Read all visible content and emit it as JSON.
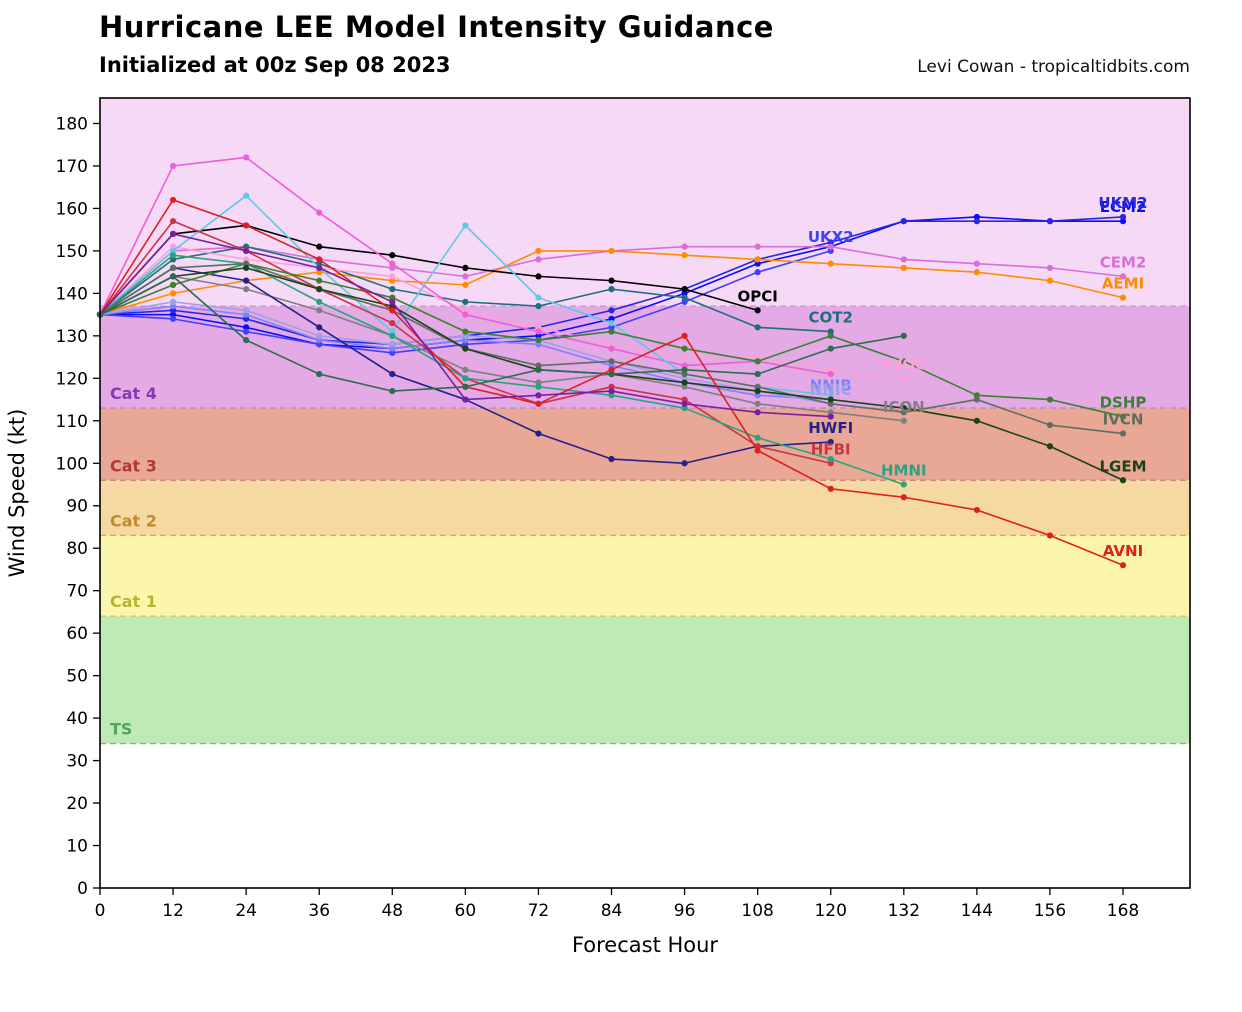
{
  "header": {
    "title": "Hurricane LEE Model Intensity Guidance",
    "subtitle": "Initialized at 00z Sep 08 2023",
    "credit": "Levi Cowan - tropicaltidbits.com"
  },
  "chart_data": {
    "type": "line",
    "title": "Hurricane LEE Model Intensity Guidance",
    "subtitle": "Initialized at 00z Sep 08 2023",
    "xlabel": "Forecast Hour",
    "ylabel": "Wind Speed (kt)",
    "xlim": [
      0,
      179
    ],
    "ylim": [
      0,
      186
    ],
    "grid": false,
    "legend_position": "line-end-labels",
    "xticks": [
      0,
      12,
      24,
      36,
      48,
      60,
      72,
      84,
      96,
      108,
      120,
      132,
      144,
      156,
      168
    ],
    "yticks": [
      0,
      10,
      20,
      30,
      40,
      50,
      60,
      70,
      80,
      90,
      100,
      110,
      120,
      130,
      140,
      150,
      160,
      170,
      180
    ],
    "x": [
      0,
      12,
      24,
      36,
      48,
      60,
      72,
      84,
      96,
      108,
      120,
      132,
      144,
      156,
      168
    ],
    "bands": [
      {
        "id": "ts",
        "label": "TS",
        "from": 34,
        "to": 64,
        "fill": "#bfe9b5",
        "label_color": "#53a653",
        "edge": "#78b878"
      },
      {
        "id": "cat-1",
        "label": "Cat 1",
        "from": 64,
        "to": 83,
        "fill": "#fcf6ac",
        "label_color": "#b5b533",
        "edge": "#c9c96a"
      },
      {
        "id": "cat-2",
        "label": "Cat 2",
        "from": 83,
        "to": 96,
        "fill": "#f6d9a2",
        "label_color": "#c08a2e",
        "edge": "#cfa95e"
      },
      {
        "id": "cat-3",
        "label": "Cat 3",
        "from": 96,
        "to": 113,
        "fill": "#e9a795",
        "label_color": "#b03a30",
        "edge": "#c98776"
      },
      {
        "id": "cat-4",
        "label": "Cat 4",
        "from": 113,
        "to": 137,
        "fill": "#e3aae6",
        "label_color": "#8a3ab0",
        "edge": "#b887c9"
      },
      {
        "id": "cat-5",
        "label": "",
        "from": 137,
        "to": 186,
        "fill": "#f6d9f6",
        "label_color": "#c875c8",
        "edge": "#cf9ad0"
      }
    ],
    "series": [
      {
        "id": "ecm2",
        "name": "ECM2",
        "color": "#0a0aff",
        "values": [
          135,
          135,
          132,
          128,
          127,
          129,
          130,
          134,
          140,
          147,
          151,
          157,
          158,
          157,
          157
        ]
      },
      {
        "id": "ukm2",
        "name": "UKM2",
        "color": "#2727e0",
        "values": [
          135,
          136,
          134,
          129,
          128,
          130,
          132,
          136,
          141,
          148,
          152,
          157,
          157,
          157,
          158
        ]
      },
      {
        "id": "ukx2",
        "name": "UKX2",
        "color": "#4040ff",
        "values": [
          135,
          134,
          131,
          128,
          126,
          128,
          129,
          132,
          138,
          145,
          150
        ]
      },
      {
        "id": "cem2",
        "name": "CEM2",
        "color": "#d86fd8",
        "values": [
          135,
          150,
          151,
          148,
          146,
          144,
          148,
          150,
          151,
          151,
          151,
          148,
          147,
          146,
          144
        ]
      },
      {
        "id": "aemi",
        "name": "AEMI",
        "color": "#ff8c00",
        "values": [
          135,
          140,
          143,
          145,
          143,
          142,
          150,
          150,
          149,
          148,
          147,
          146,
          145,
          143,
          139
        ]
      },
      {
        "id": "opci",
        "name": "OPCI",
        "color": "#000000",
        "values": [
          135,
          154,
          156,
          151,
          149,
          146,
          144,
          143,
          141,
          136
        ]
      },
      {
        "id": "cot2",
        "name": "COT2",
        "color": "#1f6f7a",
        "values": [
          135,
          148,
          151,
          147,
          141,
          138,
          137,
          141,
          139,
          132,
          131
        ]
      },
      {
        "id": "ryoc",
        "name": "RYOC",
        "color": "#ff9fd7",
        "values": [
          135,
          151,
          148,
          146,
          144,
          136,
          132,
          128,
          125,
          125,
          122,
          120
        ]
      },
      {
        "id": "model-magenta",
        "name": "",
        "color": "#ee5fd5",
        "values": [
          135,
          170,
          172,
          159,
          147,
          135,
          131,
          127,
          123,
          124,
          121
        ]
      },
      {
        "id": "model-cyan",
        "name": "",
        "color": "#5ec8e6",
        "values": [
          135,
          150,
          163,
          146,
          131,
          156,
          139,
          133,
          121,
          118,
          116
        ]
      },
      {
        "id": "nnib",
        "name": "NNIB",
        "color": "#8080ff",
        "values": [
          135,
          137,
          135,
          129,
          127,
          129,
          128,
          123,
          119,
          116,
          115
        ]
      },
      {
        "id": "nnic",
        "name": "NNIC",
        "color": "#9f9fe8",
        "values": [
          135,
          138,
          136,
          130,
          128,
          130,
          129,
          124,
          120,
          117,
          114
        ]
      },
      {
        "id": "icon",
        "name": "ICON",
        "color": "#808080",
        "values": [
          135,
          144,
          141,
          136,
          130,
          122,
          119,
          121,
          118,
          114,
          112,
          110
        ]
      },
      {
        "id": "hwfi",
        "name": "HWFI",
        "color": "#22228a",
        "values": [
          135,
          146,
          143,
          132,
          121,
          115,
          107,
          101,
          100,
          104,
          105
        ]
      },
      {
        "id": "hfbi",
        "name": "HFBI",
        "color": "#cc3344",
        "values": [
          135,
          157,
          150,
          141,
          133,
          120,
          114,
          118,
          115,
          104,
          100
        ]
      },
      {
        "id": "hmni",
        "name": "HMNI",
        "color": "#2aa37e",
        "values": [
          135,
          149,
          147,
          138,
          130,
          120,
          118,
          116,
          113,
          106,
          101,
          95
        ]
      },
      {
        "id": "dshp",
        "name": "DSHP",
        "color": "#3c8031",
        "values": [
          135,
          142,
          147,
          143,
          139,
          131,
          129,
          131,
          127,
          124,
          130,
          124,
          116,
          115,
          111
        ]
      },
      {
        "id": "ivcn",
        "name": "IVCN",
        "color": "#5f6f5f",
        "values": [
          135,
          146,
          147,
          141,
          136,
          127,
          123,
          124,
          121,
          118,
          114,
          112,
          115,
          109,
          107
        ]
      },
      {
        "id": "lgem",
        "name": "LGEM",
        "color": "#1c421c",
        "values": [
          135,
          144,
          146,
          141,
          137,
          127,
          122,
          121,
          119,
          117,
          115,
          113,
          110,
          104,
          96
        ]
      },
      {
        "id": "avni",
        "name": "AVNI",
        "color": "#e02020",
        "values": [
          135,
          162,
          156,
          148,
          136,
          118,
          114,
          122,
          130,
          103,
          94,
          92,
          89,
          83,
          76
        ]
      },
      {
        "id": "model-darkviolet",
        "name": "",
        "color": "#7a1fa2",
        "values": [
          135,
          154,
          150,
          146,
          138,
          115,
          116,
          117,
          114,
          112,
          111
        ]
      },
      {
        "id": "model-forest",
        "name": "",
        "color": "#2e6b4f",
        "values": [
          135,
          144,
          129,
          121,
          117,
          118,
          122,
          121,
          122,
          121,
          127,
          130
        ]
      }
    ]
  }
}
